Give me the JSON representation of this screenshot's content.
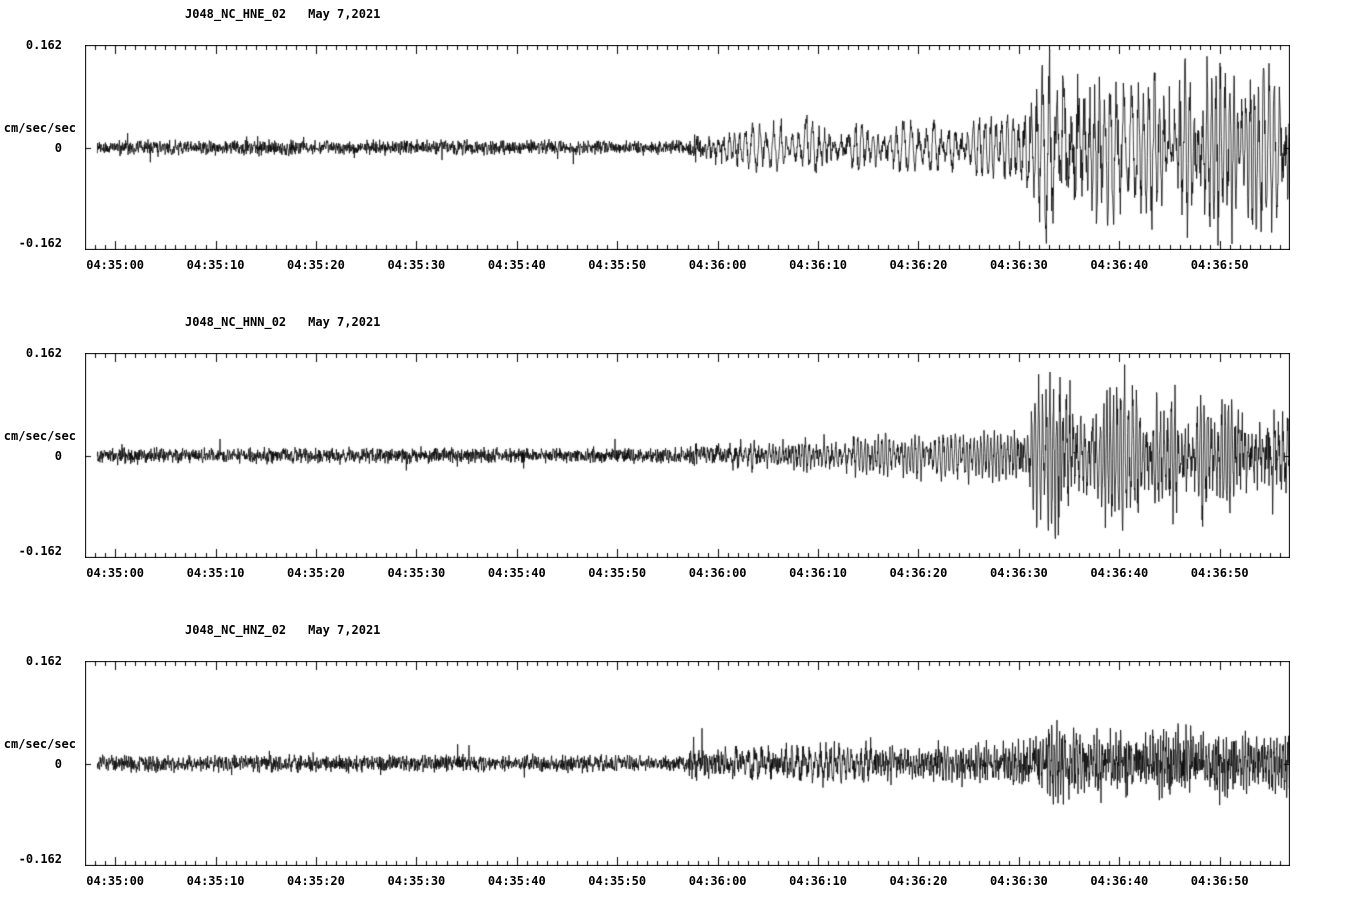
{
  "page": {
    "background": "#ffffff",
    "foreground": "#000000"
  },
  "chart_data": [
    {
      "type": "line",
      "station_channel": "J048_NC_HNE_02",
      "date": "May 7,2021",
      "ylabel": "cm/sec/sec",
      "y_tick_labels": [
        "0.162",
        "0",
        "-0.162"
      ],
      "ylim": [
        -0.162,
        0.162
      ],
      "x_tick_labels": [
        "04:35:00",
        "04:35:10",
        "04:35:20",
        "04:35:30",
        "04:35:40",
        "04:35:50",
        "04:36:00",
        "04:36:10",
        "04:36:20",
        "04:36:30",
        "04:36:40",
        "04:36:50"
      ],
      "x_tick_seconds": [
        0,
        10,
        20,
        30,
        40,
        50,
        60,
        70,
        80,
        90,
        100,
        110
      ],
      "x_range_seconds": [
        -3,
        117
      ],
      "grid": false,
      "line_color": "#000000",
      "envelope": [
        [
          -3,
          0.013
        ],
        [
          0,
          0.014
        ],
        [
          8,
          0.013
        ],
        [
          16,
          0.015
        ],
        [
          24,
          0.013
        ],
        [
          32,
          0.014
        ],
        [
          40,
          0.013
        ],
        [
          48,
          0.014
        ],
        [
          54,
          0.013
        ],
        [
          57,
          0.013
        ],
        [
          57.8,
          0.03
        ],
        [
          58.4,
          0.018
        ],
        [
          60,
          0.026
        ],
        [
          62,
          0.03
        ],
        [
          64,
          0.033
        ],
        [
          66,
          0.03
        ],
        [
          68,
          0.032
        ],
        [
          70,
          0.038
        ],
        [
          72,
          0.033
        ],
        [
          74,
          0.036
        ],
        [
          76,
          0.034
        ],
        [
          78,
          0.036
        ],
        [
          80,
          0.04
        ],
        [
          82,
          0.036
        ],
        [
          84,
          0.04
        ],
        [
          86,
          0.038
        ],
        [
          88,
          0.042
        ],
        [
          89.5,
          0.05
        ],
        [
          91,
          0.07
        ],
        [
          92.5,
          0.12
        ],
        [
          93.5,
          0.152
        ],
        [
          94.5,
          0.125
        ],
        [
          95.5,
          0.145
        ],
        [
          97,
          0.105
        ],
        [
          99,
          0.12
        ],
        [
          101,
          0.09
        ],
        [
          103,
          0.1
        ],
        [
          105,
          0.085
        ],
        [
          106.5,
          0.14
        ],
        [
          108,
          0.1
        ],
        [
          110,
          0.12
        ],
        [
          112,
          0.105
        ],
        [
          113.5,
          0.125
        ],
        [
          115,
          0.1
        ],
        [
          117,
          0.105
        ]
      ],
      "synth": {
        "seed": 20210507,
        "freq": 2.3,
        "onset": 58,
        "hf_after": 0.5,
        "lf_before": 0.15,
        "lf_after": 1.0,
        "trace_start": -1.8
      }
    },
    {
      "type": "line",
      "station_channel": "J048_NC_HNN_02",
      "date": "May 7,2021",
      "ylabel": "cm/sec/sec",
      "y_tick_labels": [
        "0.162",
        "0",
        "-0.162"
      ],
      "ylim": [
        -0.162,
        0.162
      ],
      "x_tick_labels": [
        "04:35:00",
        "04:35:10",
        "04:35:20",
        "04:35:30",
        "04:35:40",
        "04:35:50",
        "04:36:00",
        "04:36:10",
        "04:36:20",
        "04:36:30",
        "04:36:40",
        "04:36:50"
      ],
      "x_tick_seconds": [
        0,
        10,
        20,
        30,
        40,
        50,
        60,
        70,
        80,
        90,
        100,
        110
      ],
      "x_range_seconds": [
        -3,
        117
      ],
      "grid": false,
      "line_color": "#000000",
      "envelope": [
        [
          -3,
          0.014
        ],
        [
          0,
          0.015
        ],
        [
          8,
          0.014
        ],
        [
          16,
          0.015
        ],
        [
          24,
          0.014
        ],
        [
          32,
          0.015
        ],
        [
          40,
          0.014
        ],
        [
          48,
          0.015
        ],
        [
          54,
          0.014
        ],
        [
          57,
          0.014
        ],
        [
          57.8,
          0.026
        ],
        [
          58.4,
          0.018
        ],
        [
          60,
          0.024
        ],
        [
          63,
          0.027
        ],
        [
          66,
          0.028
        ],
        [
          69,
          0.03
        ],
        [
          72,
          0.028
        ],
        [
          75,
          0.03
        ],
        [
          78,
          0.029
        ],
        [
          81,
          0.031
        ],
        [
          84,
          0.03
        ],
        [
          86,
          0.032
        ],
        [
          88,
          0.034
        ],
        [
          90,
          0.05
        ],
        [
          91.5,
          0.08
        ],
        [
          93,
          0.11
        ],
        [
          94,
          0.135
        ],
        [
          95,
          0.115
        ],
        [
          96.5,
          0.095
        ],
        [
          98,
          0.085
        ],
        [
          100,
          0.095
        ],
        [
          102,
          0.08
        ],
        [
          104,
          0.095
        ],
        [
          106,
          0.085
        ],
        [
          108,
          0.095
        ],
        [
          110,
          0.085
        ],
        [
          112,
          0.092
        ],
        [
          114,
          0.075
        ],
        [
          116,
          0.088
        ],
        [
          117,
          0.092
        ]
      ],
      "synth": {
        "seed": 1948,
        "freq": 2.1,
        "onset": 58,
        "hf_after": 0.55,
        "lf_before": 0.15,
        "lf_after": 1.0,
        "trace_start": -1.8
      }
    },
    {
      "type": "line",
      "station_channel": "J048_NC_HNZ_02",
      "date": "May 7,2021",
      "ylabel": "cm/sec/sec",
      "y_tick_labels": [
        "0.162",
        "0",
        "-0.162"
      ],
      "ylim": [
        -0.162,
        0.162
      ],
      "x_tick_labels": [
        "04:35:00",
        "04:35:10",
        "04:35:20",
        "04:35:30",
        "04:35:40",
        "04:35:50",
        "04:36:00",
        "04:36:10",
        "04:36:20",
        "04:36:30",
        "04:36:40",
        "04:36:50"
      ],
      "x_tick_seconds": [
        0,
        10,
        20,
        30,
        40,
        50,
        60,
        70,
        80,
        90,
        100,
        110
      ],
      "x_range_seconds": [
        -3,
        117
      ],
      "grid": false,
      "line_color": "#000000",
      "envelope": [
        [
          -3,
          0.015
        ],
        [
          0,
          0.016
        ],
        [
          8,
          0.015
        ],
        [
          16,
          0.016
        ],
        [
          24,
          0.015
        ],
        [
          32,
          0.016
        ],
        [
          40,
          0.015
        ],
        [
          48,
          0.016
        ],
        [
          54,
          0.015
        ],
        [
          57,
          0.015
        ],
        [
          57.7,
          0.052
        ],
        [
          58.3,
          0.026
        ],
        [
          60,
          0.03
        ],
        [
          63,
          0.032
        ],
        [
          66,
          0.03
        ],
        [
          69,
          0.034
        ],
        [
          72,
          0.031
        ],
        [
          75,
          0.034
        ],
        [
          78,
          0.032
        ],
        [
          81,
          0.034
        ],
        [
          84,
          0.032
        ],
        [
          86,
          0.034
        ],
        [
          88,
          0.036
        ],
        [
          90,
          0.042
        ],
        [
          92,
          0.055
        ],
        [
          94,
          0.065
        ],
        [
          96,
          0.052
        ],
        [
          98,
          0.06
        ],
        [
          100,
          0.052
        ],
        [
          102,
          0.065
        ],
        [
          104,
          0.055
        ],
        [
          106,
          0.06
        ],
        [
          108,
          0.05
        ],
        [
          110,
          0.058
        ],
        [
          112,
          0.052
        ],
        [
          114,
          0.047
        ],
        [
          116,
          0.052
        ],
        [
          117,
          0.05
        ]
      ],
      "synth": {
        "seed": 7337,
        "freq": 2.7,
        "onset": 58,
        "hf_after": 0.85,
        "lf_before": 0.15,
        "lf_after": 0.5,
        "trace_start": -1.8
      }
    }
  ]
}
